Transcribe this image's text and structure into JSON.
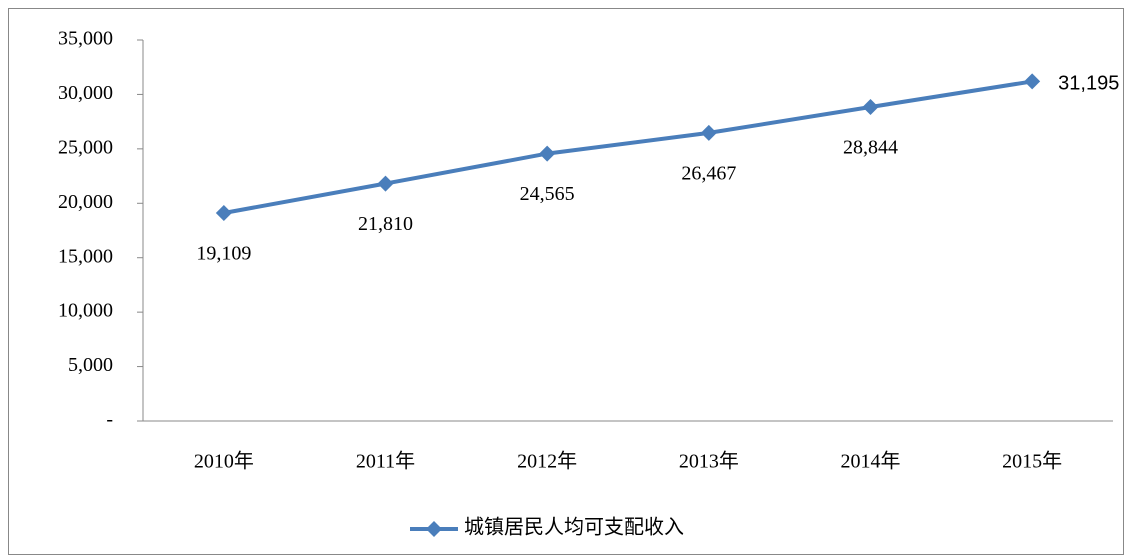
{
  "chart_data": {
    "type": "line",
    "categories": [
      "2010年",
      "2011年",
      "2012年",
      "2013年",
      "2014年",
      "2015年"
    ],
    "series": [
      {
        "name": "城镇居民人均可支配收入",
        "color": "#4a7ebb",
        "values": [
          19109,
          21810,
          24565,
          26467,
          28844,
          31195
        ],
        "value_labels": [
          "19,109",
          "21,810",
          "24,565",
          "26,467",
          "28,844",
          "31,195"
        ]
      }
    ],
    "ylim": [
      0,
      35000
    ],
    "yticks": [
      {
        "value": 0,
        "label": "-"
      },
      {
        "value": 5000,
        "label": "5,000"
      },
      {
        "value": 10000,
        "label": "10,000"
      },
      {
        "value": 15000,
        "label": "15,000"
      },
      {
        "value": 20000,
        "label": "20,000"
      },
      {
        "value": 25000,
        "label": "25,000"
      },
      {
        "value": 30000,
        "label": "30,000"
      },
      {
        "value": 35000,
        "label": "35,000"
      }
    ],
    "legend": "bottom"
  }
}
